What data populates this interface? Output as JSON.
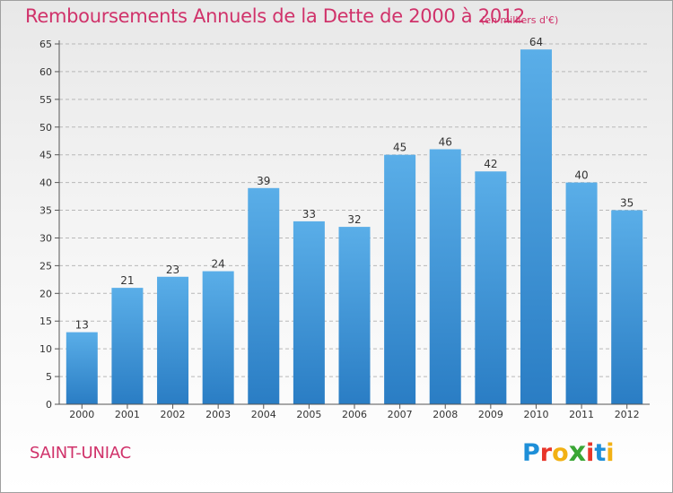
{
  "title": "Remboursements Annuels de la Dette de 2000 à 2012",
  "subtitle": "(en milliers d'€)",
  "town": "SAINT-UNIAC",
  "logo": {
    "letters": [
      "P",
      "r",
      "o",
      "x",
      "i",
      "t",
      "i"
    ]
  },
  "colors": {
    "title": "#d0326a",
    "bar_top": "#5aaee8",
    "bar_bottom": "#2a7dc4"
  },
  "chart_data": {
    "type": "bar",
    "categories": [
      "2000",
      "2001",
      "2002",
      "2003",
      "2004",
      "2005",
      "2006",
      "2007",
      "2008",
      "2009",
      "2010",
      "2011",
      "2012"
    ],
    "values": [
      13,
      21,
      23,
      24,
      39,
      33,
      32,
      45,
      46,
      42,
      64,
      40,
      35
    ],
    "ylim": [
      0,
      65
    ],
    "yticks": [
      0,
      5,
      10,
      15,
      20,
      25,
      30,
      35,
      40,
      45,
      50,
      55,
      60,
      65
    ],
    "grid": "horizontal dashed",
    "data_labels": true
  }
}
